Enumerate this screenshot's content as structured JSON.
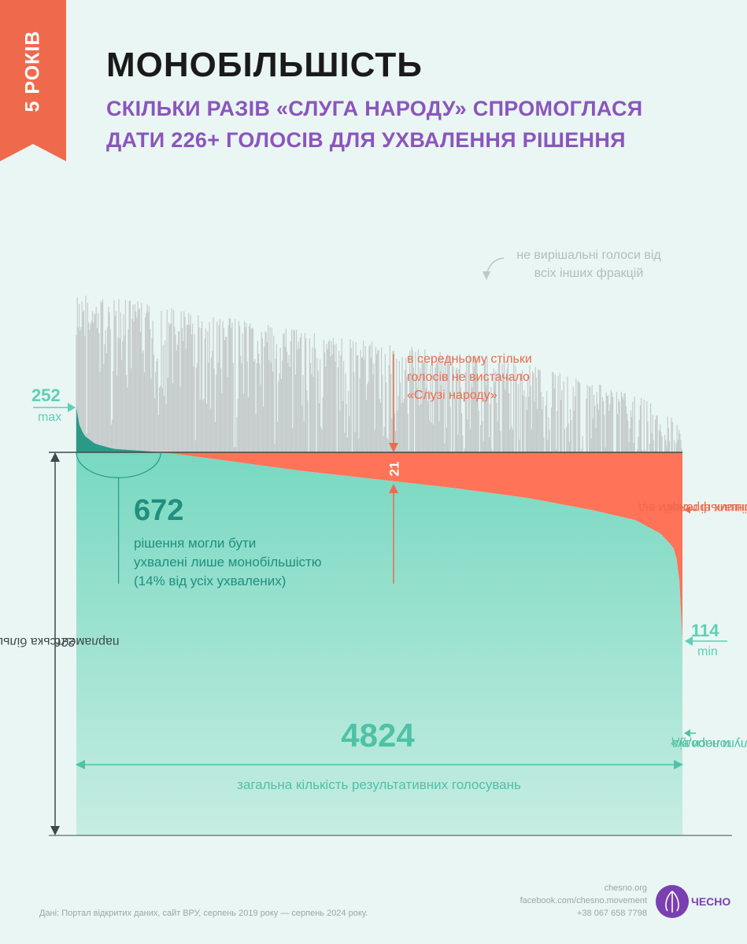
{
  "header": {
    "badge": "5 РОКІВ",
    "title": "МОНОБІЛЬШІСТЬ",
    "subtitle_line1": "СКІЛЬКИ РАЗІВ «СЛУГА НАРОДУ» СПРОМОГЛАСЯ",
    "subtitle_line2": "ДАТИ 226+ ГОЛОСІВ ДЛЯ УХВАЛЕННЯ РІШЕННЯ"
  },
  "annotations": {
    "other_votes_line1": "не вирішальні голоси від",
    "other_votes_line2": "всіх інших фракцій",
    "shortfall_line1": "в середньому стільки",
    "shortfall_line2": "голосів не вистачало",
    "shortfall_line3": "«Слузі народу»",
    "shortfall_value": "21",
    "mono_value": "672",
    "mono_line1": "рішення могли бути",
    "mono_line2": "ухвалені лише монобільшістю",
    "mono_line3": "(14% від усіх ухвалених)",
    "max_value": "252",
    "max_label": "max",
    "min_value": "114",
    "min_label": "min",
    "majority_label": "парламентська більшість",
    "majority_value": "226",
    "decisive_line1": "вирішальні голоси від",
    "decisive_line2": "усіх інших фракцій",
    "servant_line1": "голоси від",
    "servant_line2": "«Слуги народу»",
    "total_value": "4824",
    "total_label": "загальна кількість результативних голосувань"
  },
  "footer": {
    "source": "Дані: Портал відкритих даних, сайт ВРУ, серпень 2019 року — серпень 2024 року.",
    "site": "chesno.org",
    "facebook": "facebook.com/chesno.movement",
    "phone": "+38 067 658 7798",
    "brand": "ЧЕСНО"
  },
  "colors": {
    "ribbon": "#ef6a4d",
    "servant_votes": "#6fd6bd",
    "servant_votes_dark": "#2a9a86",
    "decisive_other": "#ff7358",
    "nondecisive_other": "#c5cccb",
    "title_purple": "#8c55bd"
  },
  "chart_data": {
    "type": "area",
    "title": "МОНОБІЛЬШІСТЬ",
    "xlabel": "загальна кількість результативних голосувань",
    "ylabel": "",
    "total_votings": 4824,
    "majority_threshold": 226,
    "monomajority_decisions": 672,
    "monomajority_share": "14%",
    "avg_shortfall": 21,
    "y_max_servant": 252,
    "y_min_servant": 114,
    "ylim": [
      0,
      330
    ],
    "servant_curve": {
      "x": [
        0,
        20,
        60,
        150,
        300,
        500,
        672,
        900,
        1300,
        1800,
        2400,
        3000,
        3600,
        4100,
        4450,
        4650,
        4750,
        4790,
        4810,
        4824
      ],
      "y": [
        252,
        243,
        236,
        231,
        228,
        227,
        226,
        224,
        220,
        215,
        210,
        205,
        199,
        192,
        186,
        178,
        170,
        160,
        140,
        114
      ]
    },
    "total_yes_envelope": {
      "x": [
        0,
        500,
        1000,
        2000,
        3000,
        3500,
        4000,
        4500,
        4824
      ],
      "y": [
        320,
        315,
        308,
        295,
        285,
        280,
        270,
        258,
        245
      ]
    },
    "series": [
      {
        "name": "голоси від «Слуги народу»"
      },
      {
        "name": "вирішальні голоси від усіх інших фракцій"
      },
      {
        "name": "не вирішальні голоси від всіх інших фракцій"
      }
    ]
  }
}
